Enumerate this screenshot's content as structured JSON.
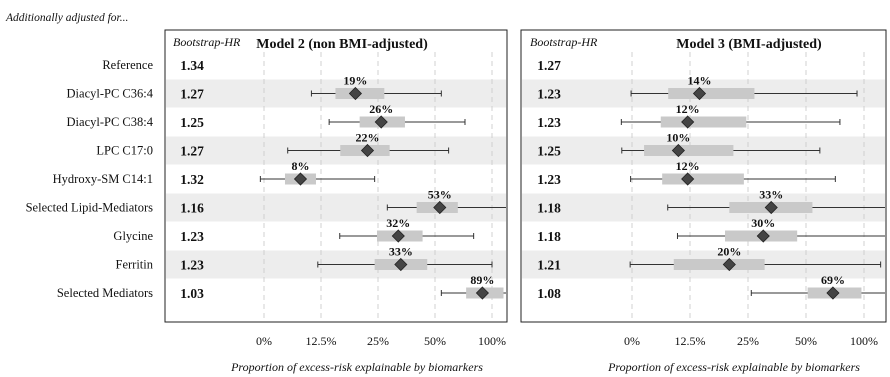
{
  "header_note": "Additionally adjusted for...",
  "hr_header": "Bootstrap-HR",
  "rows": [
    "Reference",
    "Diacyl-PC C36:4",
    "Diacyl-PC C38:4",
    "LPC C17:0",
    "Hydroxy-SM C14:1",
    "Selected Lipid-Mediators",
    "Glycine",
    "Ferritin",
    "Selected Mediators"
  ],
  "chart_data": [
    {
      "type": "forest",
      "title": "Model 2 (non BMI-adjusted)",
      "xlabel": "Proportion of excess-risk explainable by biomarkers",
      "x_ticks": [
        "0%",
        "12.5%",
        "25%",
        "50%",
        "100%"
      ],
      "x_tick_positions": [
        0,
        12.5,
        25,
        50,
        100
      ],
      "x_scale": "log-like (0% baseline, 12.5/25/50/100% spaced evenly)",
      "hr_values": [
        "1.34",
        "1.27",
        "1.25",
        "1.27",
        "1.32",
        "1.16",
        "1.23",
        "1.23",
        "1.03"
      ],
      "estimates": [
        null,
        19,
        26,
        22,
        8,
        53,
        32,
        33,
        89
      ],
      "estimate_labels": [
        "",
        "19%",
        "26%",
        "22%",
        "8%",
        "53%",
        "32%",
        "33%",
        "89%"
      ],
      "ci_low": [
        null,
        10.4,
        13.8,
        5.2,
        -0.8,
        28,
        15.7,
        11.8,
        54
      ],
      "ci_high": [
        null,
        54,
        72,
        59,
        24,
        144,
        80,
        100,
        200
      ],
      "iqr_low": [
        null,
        14.9,
        20,
        15.8,
        4.6,
        40,
        24.7,
        24,
        73
      ],
      "iqr_high": [
        null,
        27,
        34.7,
        28.8,
        11.4,
        66,
        43,
        45.5,
        115
      ]
    },
    {
      "type": "forest",
      "title": "Model 3 (BMI-adjusted)",
      "xlabel": "Proportion of excess-risk explainable by biomarkers",
      "x_ticks": [
        "0%",
        "12.5%",
        "25%",
        "50%",
        "100%"
      ],
      "x_tick_positions": [
        0,
        12.5,
        25,
        50,
        100
      ],
      "x_scale": "log-like (0% baseline, 12.5/25/50/100% spaced evenly)",
      "hr_values": [
        "1.27",
        "1.23",
        "1.23",
        "1.25",
        "1.23",
        "1.18",
        "1.18",
        "1.21",
        "1.08"
      ],
      "estimates": [
        null,
        14,
        12,
        10,
        12,
        33,
        30,
        20,
        69
      ],
      "estimate_labels": [
        "",
        "14%",
        "12%",
        "10%",
        "12%",
        "33%",
        "30%",
        "20%",
        "69%"
      ],
      "ci_low": [
        null,
        -0.2,
        -2.3,
        -2.2,
        -0.3,
        7.7,
        9.8,
        -0.4,
        26
      ],
      "ci_high": [
        null,
        92,
        75,
        59,
        71,
        136,
        134,
        122,
        154
      ],
      "iqr_low": [
        null,
        7.8,
        6.2,
        2.6,
        6.5,
        20,
        19,
        9,
        51
      ],
      "iqr_high": [
        null,
        27,
        24.5,
        21,
        23.8,
        54,
        45,
        30.5,
        97
      ]
    }
  ]
}
